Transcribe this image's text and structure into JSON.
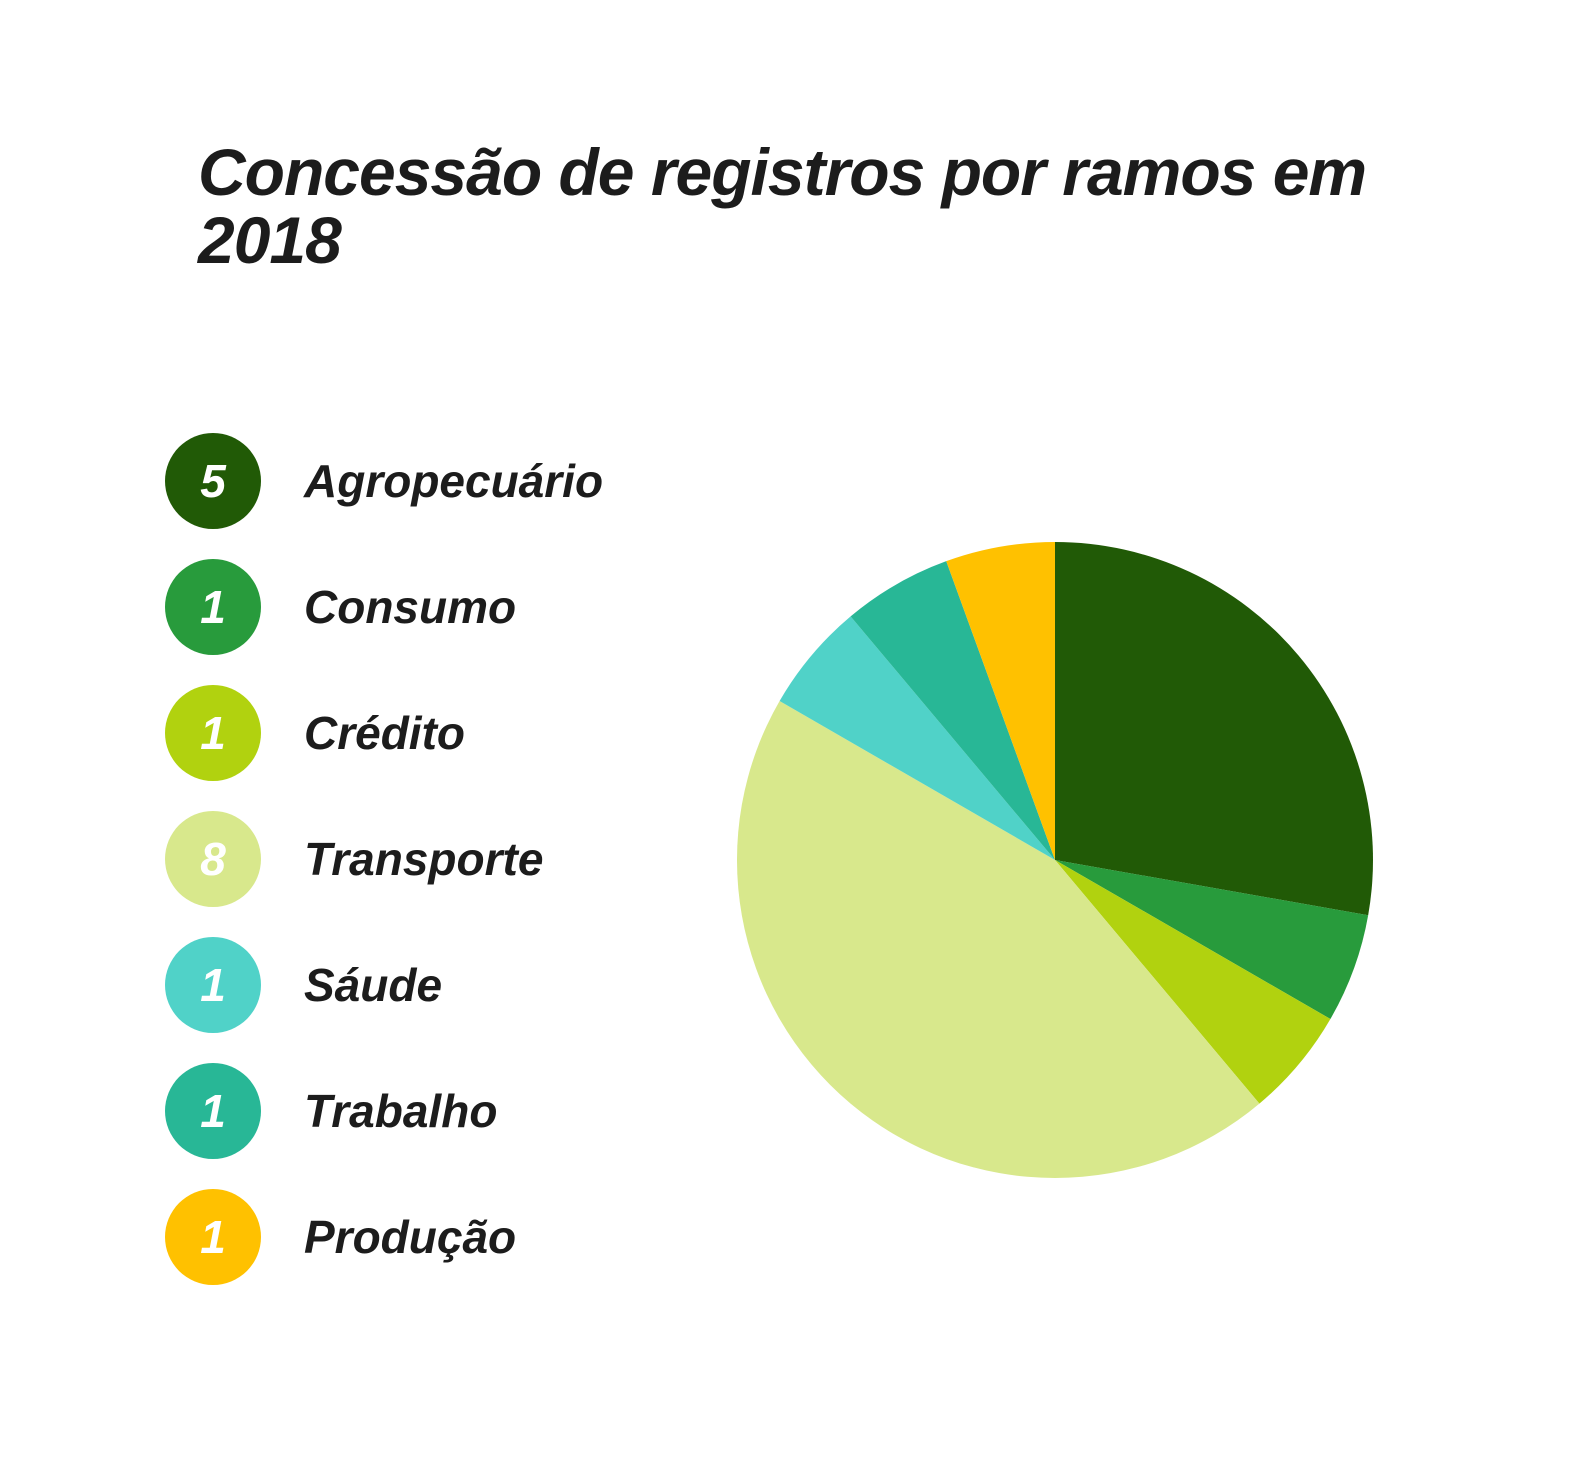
{
  "title": "Concessão de registros por ramos em 2018",
  "chart_data": {
    "type": "pie",
    "title": "Concessão de registros por ramos em 2018",
    "slices": [
      {
        "label": "Agropecuário",
        "value": 5,
        "color": "#215a06"
      },
      {
        "label": "Consumo",
        "value": 1,
        "color": "#289b3c"
      },
      {
        "label": "Crédito",
        "value": 1,
        "color": "#b1d20f"
      },
      {
        "label": "Transporte",
        "value": 8,
        "color": "#d8e88c"
      },
      {
        "label": "Sáude",
        "value": 1,
        "color": "#50d2c8"
      },
      {
        "label": "Trabalho",
        "value": 1,
        "color": "#28b796"
      },
      {
        "label": "Produção",
        "value": 1,
        "color": "#ffc100"
      }
    ],
    "legend_position": "left",
    "start_angle": "12 o'clock",
    "direction": "clockwise"
  }
}
